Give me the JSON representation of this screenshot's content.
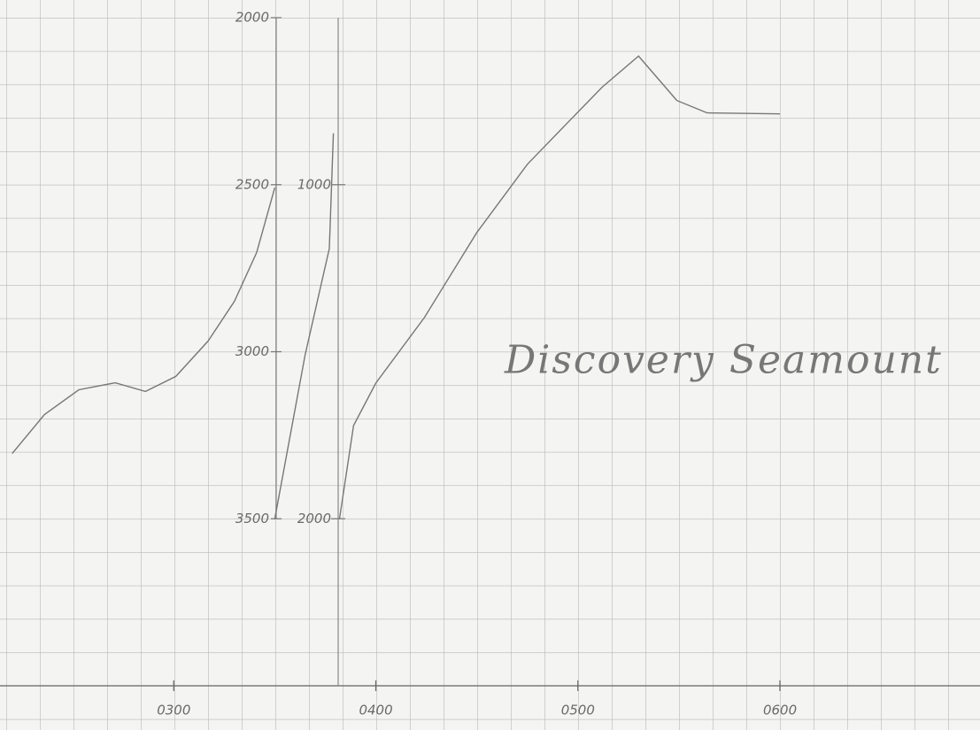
{
  "chart_data": {
    "type": "line",
    "annotation": "Discovery Seamount",
    "xlim": [
      2.14,
      6.99
    ],
    "xticks": [
      {
        "value": 3,
        "label": "0300"
      },
      {
        "value": 4,
        "label": "0400"
      },
      {
        "value": 5,
        "label": "0500"
      },
      {
        "value": 6,
        "label": "0600"
      }
    ],
    "ylim": [
      2000,
      4000
    ],
    "yticks": [
      2000,
      2500,
      3000,
      3500
    ],
    "y2lim": [
      500,
      2500
    ],
    "y2ticks": [
      1000,
      2000
    ],
    "series": [
      {
        "color": "#777777",
        "x": [
          2.2,
          2.36,
          2.53,
          2.71,
          2.86,
          3.01,
          3.17,
          3.3,
          3.41,
          3.5
        ],
        "values": [
          3305,
          3188,
          3114,
          3093,
          3119,
          3074,
          2968,
          2849,
          2703,
          2509
        ]
      },
      {
        "color": "#777777",
        "axis": "y2",
        "x": [
          3.5,
          3.65,
          3.77,
          3.79
        ],
        "values": [
          2000,
          1509,
          1191,
          846
        ]
      },
      {
        "color": "#777777",
        "axis": "y2",
        "x": [
          3.82,
          3.89,
          4.0,
          4.24,
          4.5,
          4.75,
          4.94,
          5.12,
          5.3,
          5.49,
          5.64,
          6.0
        ],
        "values": [
          2000,
          1721,
          1594,
          1398,
          1143,
          939,
          820,
          708,
          615,
          748,
          785,
          788
        ]
      }
    ]
  }
}
